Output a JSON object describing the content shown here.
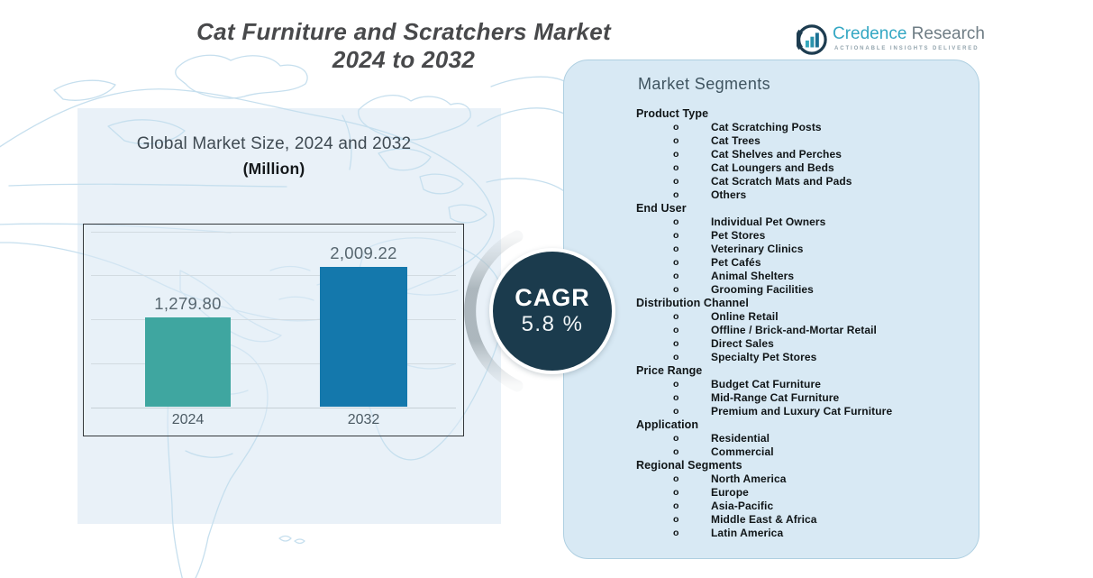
{
  "title": {
    "line1": "Cat Furniture and Scratchers Market",
    "line2": "2024 to 2032"
  },
  "logo": {
    "brand_primary": "Credence",
    "brand_secondary": " Research",
    "tagline": "Actionable Insights Delivered"
  },
  "chart": {
    "title_line1": "Global Market Size, 2024 and 2032",
    "title_line2": "(Million)"
  },
  "chart_data": {
    "type": "bar",
    "title": "Global Market Size, 2024 and 2032 (Million)",
    "categories": [
      "2024",
      "2032"
    ],
    "values": [
      1279.8,
      2009.22
    ],
    "value_labels": [
      "1,279.80",
      "2,009.22"
    ],
    "ylim": [
      0,
      2100
    ],
    "grid": true,
    "legend": "none",
    "bar_colors": [
      "#3fa6a0",
      "#1478ac"
    ]
  },
  "cagr": {
    "label": "CAGR",
    "value": "5.8 %"
  },
  "segments": {
    "heading": "Market Segments",
    "bullet": "o",
    "sections": [
      {
        "name": "Product Type",
        "items": [
          "Cat Scratching Posts",
          "Cat Trees",
          "Cat Shelves and Perches",
          "Cat Loungers and Beds",
          "Cat Scratch Mats and Pads",
          "Others"
        ]
      },
      {
        "name": "End User",
        "items": [
          "Individual Pet Owners",
          "Pet Stores",
          "Veterinary Clinics",
          "Pet Cafés",
          "Animal Shelters",
          "Grooming Facilities"
        ]
      },
      {
        "name": "Distribution Channel",
        "items": [
          "Online Retail",
          "Offline / Brick-and-Mortar Retail",
          "Direct Sales",
          "Specialty Pet Stores"
        ]
      },
      {
        "name": "Price Range",
        "items": [
          "Budget Cat Furniture",
          "Mid-Range Cat Furniture",
          "Premium and Luxury Cat Furniture"
        ]
      },
      {
        "name": "Application",
        "items": [
          "Residential",
          "Commercial"
        ]
      },
      {
        "name": "Regional Segments",
        "items": [
          "North America",
          "Europe",
          "Asia-Pacific",
          "Middle East & Africa",
          "Latin America"
        ]
      }
    ]
  },
  "colors": {
    "bar_2024": "#3fa6a0",
    "bar_2032": "#1478ac",
    "cagr_circle": "#1b3b4d",
    "panel_fill": "#d8e9f4",
    "left_tint": "#e9f1f8",
    "brand_teal": "#33a7c3",
    "map_stroke": "#c6dfee"
  }
}
